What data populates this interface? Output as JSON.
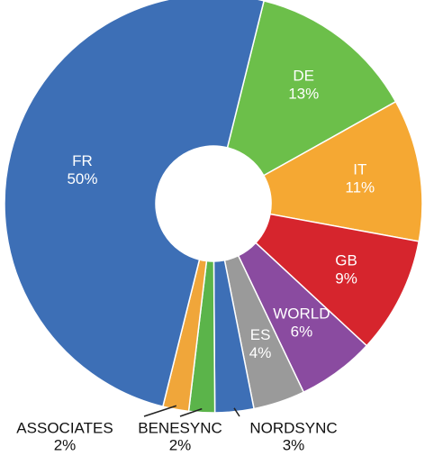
{
  "chart_data": {
    "type": "donut",
    "categories": [
      "DE",
      "IT",
      "GB",
      "WORLD",
      "ES",
      "NORDSYNC",
      "BENESYNC",
      "ASSOCIATES",
      "FR"
    ],
    "values": [
      13,
      11,
      9,
      6,
      4,
      3,
      2,
      2,
      50
    ],
    "value_labels": [
      "13%",
      "11%",
      "9%",
      "6%",
      "4%",
      "3%",
      "2%",
      "2%",
      "50%"
    ],
    "colors": [
      "#6cbf4a",
      "#f5a833",
      "#d6252d",
      "#8a4ba0",
      "#9a9a9a",
      "#3d6fb6",
      "#5bb44a",
      "#f0a63a",
      "#3d6fb6"
    ]
  }
}
